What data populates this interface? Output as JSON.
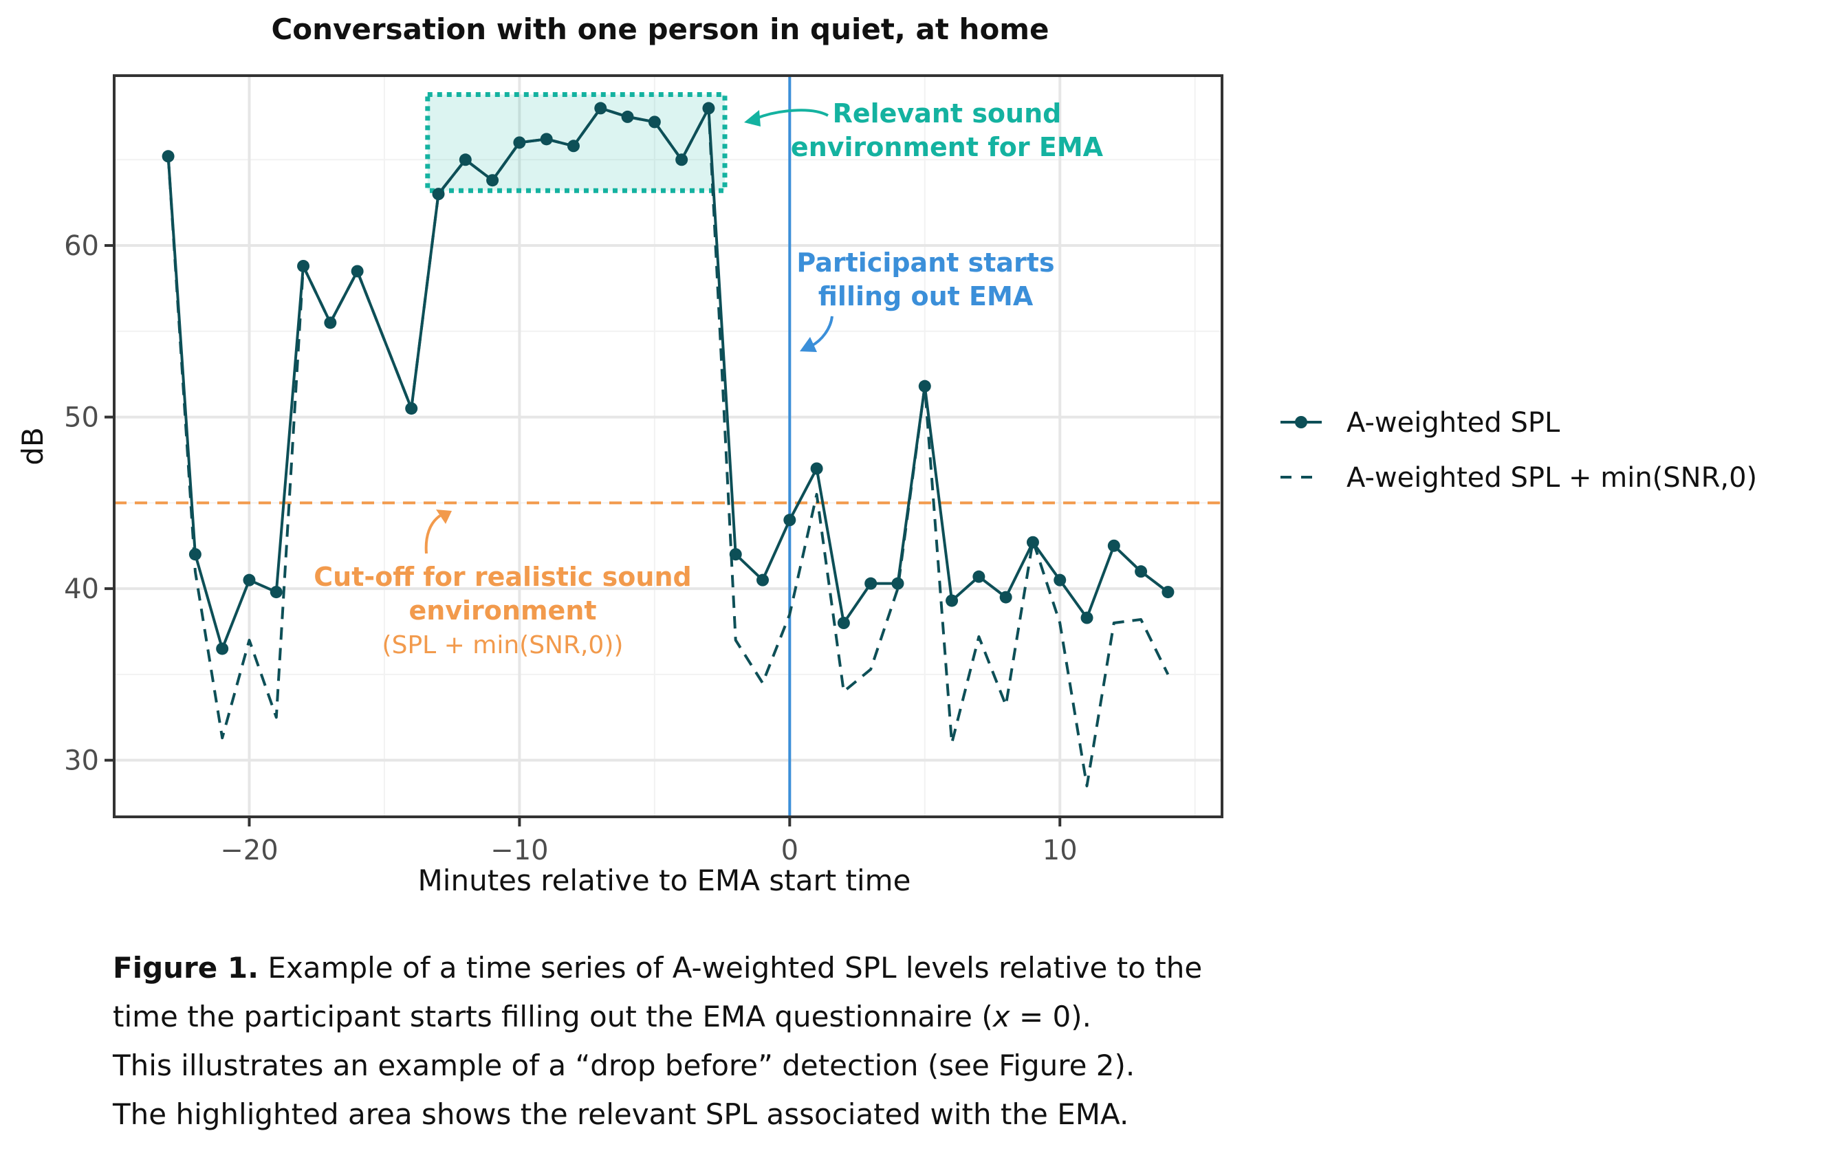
{
  "chart_data": {
    "type": "line",
    "title": "Conversation with one person in quiet, at home",
    "xlabel": "Minutes relative to EMA start time",
    "ylabel": "dB",
    "xlim": [
      -25,
      16
    ],
    "ylim": [
      26.7,
      69.9
    ],
    "x_ticks": [
      -20,
      -10,
      0,
      10
    ],
    "x_tick_labels": [
      "−20",
      "−10",
      "0",
      "10"
    ],
    "y_ticks": [
      30,
      40,
      50,
      60
    ],
    "y_tick_labels": [
      "30",
      "40",
      "50",
      "60"
    ],
    "grid": true,
    "legend_position": "right",
    "series": [
      {
        "name": "A-weighted SPL",
        "style": "solid-with-points",
        "color": "#0d4f57",
        "x": [
          -23,
          -22,
          -21,
          -20,
          -19,
          -18,
          -17,
          -16,
          -14,
          -13,
          -12,
          -11,
          -10,
          -9,
          -8,
          -7,
          -6,
          -5,
          -4,
          -3,
          -2,
          -1,
          0,
          1,
          2,
          3,
          4,
          5,
          6,
          7,
          8,
          9,
          10,
          11,
          12,
          13,
          14
        ],
        "values": [
          65.2,
          42.0,
          36.5,
          40.5,
          39.8,
          58.8,
          55.5,
          58.5,
          50.5,
          63.0,
          65.0,
          63.8,
          66.0,
          66.2,
          65.8,
          68.0,
          67.5,
          67.2,
          65.0,
          68.0,
          42.0,
          40.5,
          44.0,
          47.0,
          38.0,
          40.3,
          40.3,
          51.8,
          39.3,
          40.7,
          39.5,
          42.7,
          40.5,
          38.3,
          42.5,
          41.0,
          39.8
        ]
      },
      {
        "name": "A-weighted SPL + min(SNR,0)",
        "style": "dashed",
        "color": "#0d4f57",
        "x": [
          -23,
          -22,
          -21,
          -20,
          -19,
          -18,
          -17,
          -16,
          -14,
          -13,
          -12,
          -11,
          -10,
          -9,
          -8,
          -7,
          -6,
          -5,
          -4,
          -3,
          -2,
          -1,
          0,
          1,
          2,
          3,
          4,
          5,
          6,
          7,
          8,
          9,
          10,
          11,
          12,
          13,
          14
        ],
        "values": [
          65.2,
          41.0,
          31.3,
          37.0,
          32.5,
          58.8,
          55.5,
          58.5,
          50.5,
          63.0,
          65.0,
          63.8,
          66.0,
          66.2,
          65.8,
          68.0,
          67.5,
          67.2,
          65.0,
          68.0,
          37.0,
          34.5,
          38.5,
          45.5,
          34.0,
          35.3,
          40.0,
          51.8,
          31.0,
          37.2,
          33.2,
          42.8,
          38.0,
          28.5,
          38.0,
          38.2,
          35.0
        ]
      }
    ],
    "reference_lines": [
      {
        "type": "horizontal",
        "y": 45,
        "color": "#f29a4c",
        "style": "dashed"
      },
      {
        "type": "vertical",
        "x": 0,
        "color": "#3b8fd9",
        "style": "solid"
      }
    ],
    "highlight_region": {
      "x": [
        -13.4,
        -2.4
      ],
      "y": [
        63.2,
        68.8
      ],
      "color": "#14b2a0"
    },
    "annotations": [
      {
        "id": "relevant",
        "lines": [
          "Relevant sound",
          "environment for EMA"
        ],
        "color": "#14b2a0",
        "bold": true
      },
      {
        "id": "participant",
        "lines": [
          "Participant starts",
          "filling out EMA"
        ],
        "color": "#3b8fd9",
        "bold": true
      },
      {
        "id": "cutoff",
        "lines": [
          "Cut-off for realistic sound",
          "environment"
        ],
        "sub": "(SPL + min(SNR,0))",
        "color": "#f29a4c",
        "bold": true
      }
    ]
  },
  "caption": {
    "label": "Figure 1.",
    "line1_rest": " Example of a time series of A-weighted SPL levels relative to the",
    "line2_pre": "time the participant starts filling out the EMA questionnaire (",
    "line2_var": "x",
    "line2_post": " = 0).",
    "line3": "This illustrates an example of a “drop before” detection (see Figure 2).",
    "line4": "The highlighted area shows the relevant SPL associated with the EMA."
  }
}
